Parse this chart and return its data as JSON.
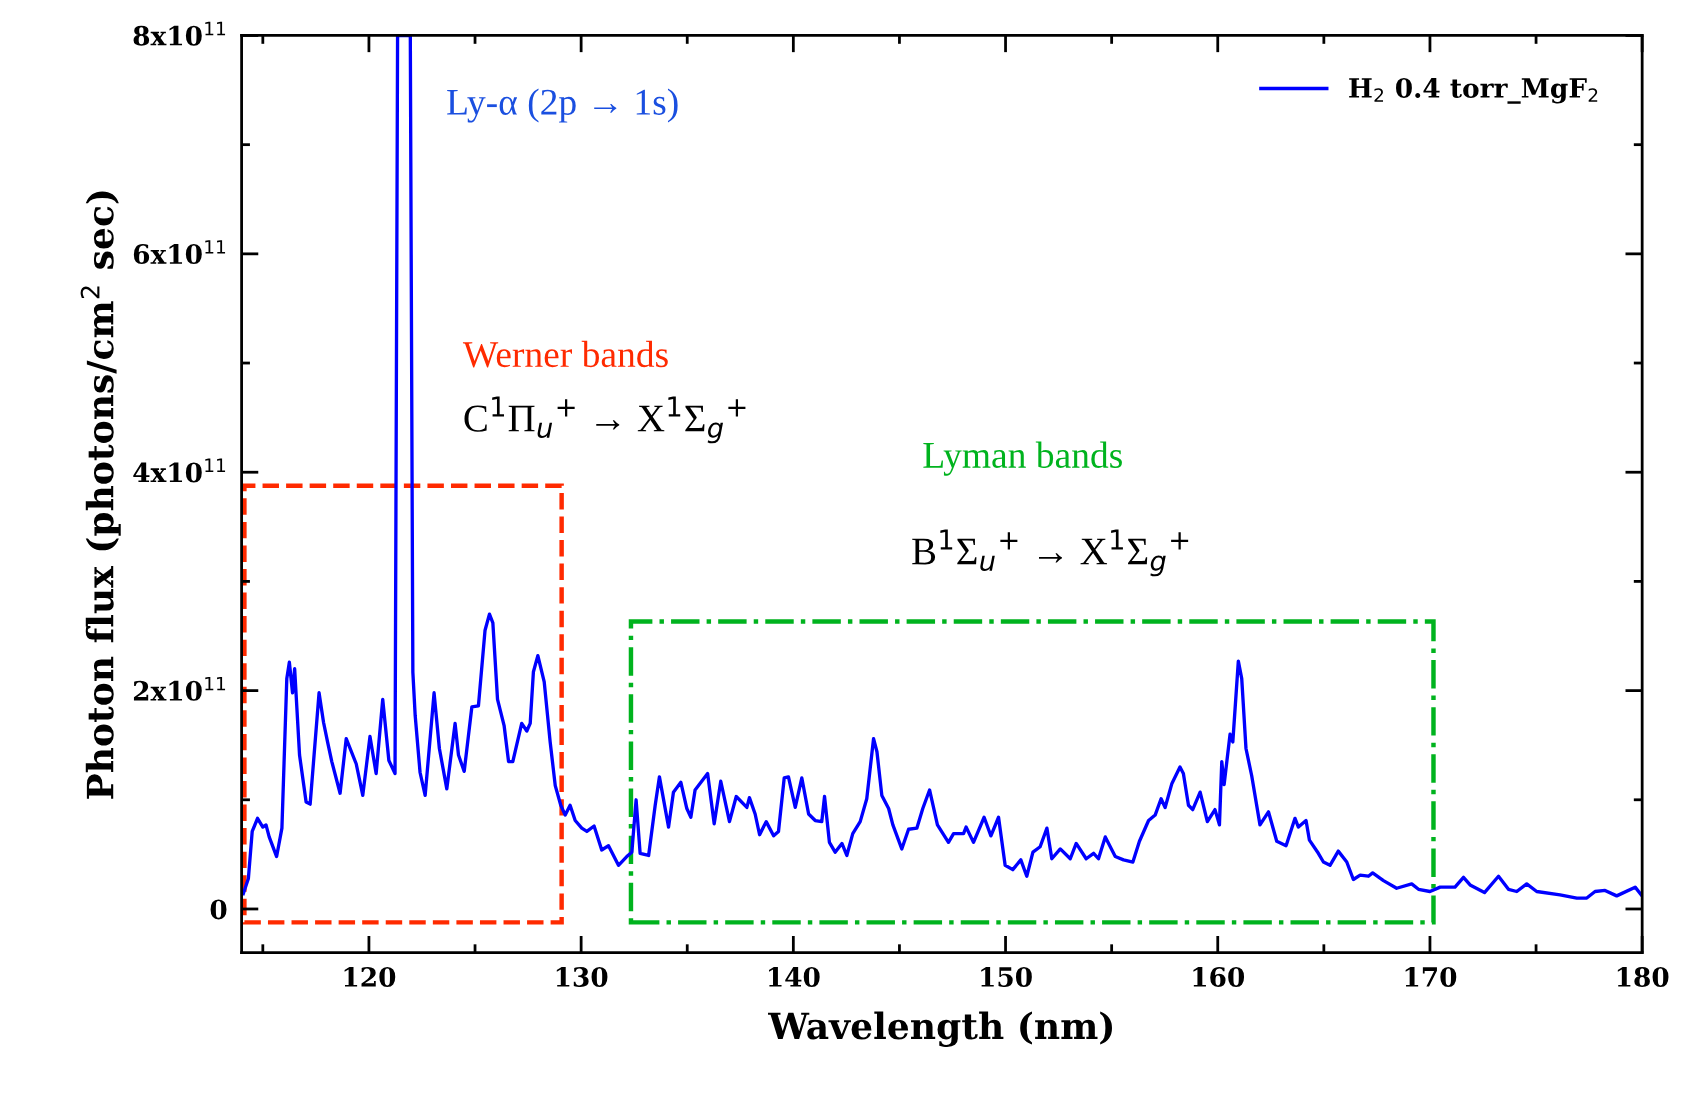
{
  "chart_data": {
    "type": "line",
    "xlabel": "Wavelength (nm)",
    "ylabel": "Photon flux (photons/cm$^{2}$ sec)",
    "xlim": [
      114,
      180
    ],
    "xticks": [
      120,
      130,
      140,
      150,
      160,
      170,
      180
    ],
    "ylim": [
      -40000000000.0,
      800000000000.0
    ],
    "yticks": [
      {
        "value": 0,
        "label": "0"
      },
      {
        "value": 200000000000.0,
        "label": "2x10$^{11}$"
      },
      {
        "value": 400000000000.0,
        "label": "4x10$^{11}$"
      },
      {
        "value": 600000000000.0,
        "label": "6x10$^{11}$"
      },
      {
        "value": 800000000000.0,
        "label": "8x10$^{11}$"
      }
    ],
    "grid": false,
    "legend": "top right",
    "marker": "none",
    "line_style": "solid",
    "series": [
      {
        "name": "H$_{2}$ 0.4 torr_MgF$_{2}$",
        "color": "#0000ff",
        "x": [
          114.08,
          114.32,
          114.5,
          114.75,
          115.0,
          115.15,
          115.3,
          115.65,
          115.9,
          116.13,
          116.25,
          116.4,
          116.5,
          116.73,
          117.04,
          117.23,
          117.65,
          117.86,
          118.05,
          118.25,
          118.64,
          118.93,
          119.4,
          119.71,
          120.05,
          120.34,
          120.65,
          120.94,
          121.23,
          121.35,
          121.95,
          122.07,
          122.18,
          122.41,
          122.65,
          123.07,
          123.32,
          123.67,
          124.06,
          124.22,
          124.49,
          124.85,
          125.16,
          125.47,
          125.68,
          125.84,
          126.06,
          126.37,
          126.58,
          126.78,
          127.2,
          127.44,
          127.6,
          127.75,
          127.96,
          128.26,
          128.54,
          128.78,
          129.04,
          129.25,
          129.48,
          129.72,
          130.03,
          130.27,
          130.61,
          130.97,
          131.29,
          131.76,
          132.15,
          132.39,
          132.59,
          132.78,
          133.18,
          133.49,
          133.69,
          134.12,
          134.35,
          134.7,
          134.98,
          135.17,
          135.37,
          135.96,
          136.27,
          136.58,
          136.99,
          137.31,
          137.81,
          137.93,
          138.2,
          138.41,
          138.72,
          139.07,
          139.3,
          139.57,
          139.77,
          140.09,
          140.4,
          140.72,
          141.03,
          141.34,
          141.47,
          141.7,
          141.97,
          142.29,
          142.52,
          142.8,
          143.15,
          143.46,
          143.78,
          143.94,
          144.17,
          144.49,
          144.69,
          145.11,
          145.43,
          145.82,
          146.1,
          146.42,
          146.79,
          147.31,
          147.55,
          148.02,
          148.14,
          148.49,
          148.99,
          149.31,
          149.67,
          149.98,
          150.34,
          150.72,
          151.0,
          151.29,
          151.63,
          151.95,
          152.18,
          152.58,
          153.05,
          153.33,
          153.8,
          154.15,
          154.38,
          154.7,
          155.17,
          155.56,
          156.0,
          156.31,
          156.74,
          157.05,
          157.33,
          157.52,
          157.84,
          158.22,
          158.38,
          158.62,
          158.82,
          159.17,
          159.51,
          159.87,
          160.08,
          160.19,
          160.3,
          160.58,
          160.71,
          160.97,
          161.13,
          161.33,
          161.6,
          161.99,
          162.39,
          162.78,
          163.22,
          163.64,
          163.8,
          164.16,
          164.32,
          164.74,
          164.98,
          165.29,
          165.68,
          166.08,
          166.39,
          166.71,
          167.1,
          167.3,
          167.81,
          168.43,
          169.14,
          169.46,
          170.0,
          170.48,
          171.18,
          171.58,
          171.89,
          172.57,
          173.23,
          173.7,
          174.09,
          174.56,
          175.03,
          176.13,
          176.92,
          177.39,
          177.78,
          178.25,
          178.8,
          179.67,
          179.95
        ],
        "values": [
          14000000000.0,
          28000000000.0,
          71000000000.0,
          83000000000.0,
          75000000000.0,
          77000000000.0,
          66000000000.0,
          48000000000.0,
          74000000000.0,
          211000000000.0,
          226000000000.0,
          198000000000.0,
          220000000000.0,
          141000000000.0,
          98000000000.0,
          96000000000.0,
          198000000000.0,
          171000000000.0,
          153000000000.0,
          135000000000.0,
          106000000000.0,
          156000000000.0,
          133000000000.0,
          104000000000.0,
          158000000000.0,
          124000000000.0,
          192000000000.0,
          136000000000.0,
          124000000000.0,
          800000000000.0,
          800000000000.0,
          217000000000.0,
          177000000000.0,
          125000000000.0,
          104000000000.0,
          198000000000.0,
          147000000000.0,
          110000000000.0,
          170000000000.0,
          141000000000.0,
          126000000000.0,
          185000000000.0,
          186000000000.0,
          255000000000.0,
          270000000000.0,
          262000000000.0,
          192000000000.0,
          168000000000.0,
          135000000000.0,
          135000000000.0,
          170000000000.0,
          163000000000.0,
          170000000000.0,
          217000000000.0,
          232000000000.0,
          208000000000.0,
          153000000000.0,
          113000000000.0,
          95000000000.0,
          86000000000.0,
          95000000000.0,
          81000000000.0,
          74000000000.0,
          71000000000.0,
          76000000000.0,
          54000000000.0,
          58000000000.0,
          40000000000.0,
          48000000000.0,
          52000000000.0,
          100000000000.0,
          51000000000.0,
          49000000000.0,
          95000000000.0,
          121000000000.0,
          75000000000.0,
          107000000000.0,
          116000000000.0,
          92000000000.0,
          84000000000.0,
          109000000000.0,
          124000000000.0,
          78000000000.0,
          117000000000.0,
          80000000000.0,
          103000000000.0,
          93000000000.0,
          102000000000.0,
          87000000000.0,
          68000000000.0,
          80000000000.0,
          67000000000.0,
          71000000000.0,
          120000000000.0,
          121000000000.0,
          93000000000.0,
          120000000000.0,
          87000000000.0,
          81000000000.0,
          80000000000.0,
          103000000000.0,
          61000000000.0,
          52000000000.0,
          60000000000.0,
          49000000000.0,
          69000000000.0,
          80000000000.0,
          101000000000.0,
          156000000000.0,
          144000000000.0,
          104000000000.0,
          92000000000.0,
          77000000000.0,
          55000000000.0,
          73000000000.0,
          74000000000.0,
          92000000000.0,
          109000000000.0,
          77000000000.0,
          61000000000.0,
          69000000000.0,
          69000000000.0,
          75000000000.0,
          61000000000.0,
          84000000000.0,
          67000000000.0,
          84000000000.0,
          40000000000.0,
          36000000000.0,
          45000000000.0,
          30000000000.0,
          52000000000.0,
          57000000000.0,
          74000000000.0,
          46000000000.0,
          55000000000.0,
          46000000000.0,
          60000000000.0,
          46000000000.0,
          51000000000.0,
          46000000000.0,
          66000000000.0,
          48000000000.0,
          45000000000.0,
          43000000000.0,
          62000000000.0,
          81000000000.0,
          86000000000.0,
          101000000000.0,
          93000000000.0,
          115000000000.0,
          130000000000.0,
          124000000000.0,
          95000000000.0,
          91000000000.0,
          107000000000.0,
          80000000000.0,
          91000000000.0,
          77000000000.0,
          135000000000.0,
          114000000000.0,
          160000000000.0,
          153000000000.0,
          227000000000.0,
          211000000000.0,
          147000000000.0,
          122000000000.0,
          77000000000.0,
          89000000000.0,
          62000000000.0,
          58000000000.0,
          83000000000.0,
          75000000000.0,
          81000000000.0,
          63000000000.0,
          51000000000.0,
          43000000000.0,
          40000000000.0,
          53000000000.0,
          43000000000.0,
          27000000000.0,
          31000000000.0,
          30000000000.0,
          33000000000.0,
          26000000000.0,
          19000000000.0,
          23000000000.0,
          18000000000.0,
          16000000000.0,
          20000000000.0,
          20000000000.0,
          29000000000.0,
          22000000000.0,
          15000000000.0,
          30000000000.0,
          18000000000.0,
          16000000000.0,
          23000000000.0,
          16000000000.0,
          13000000000.0,
          10000000000.0,
          10000000000.0,
          16000000000.0,
          17000000000.0,
          12000000000.0,
          20000000000.0,
          13000000000.0
        ]
      }
    ],
    "annotations": [
      "Ly-α (2p → 1s)",
      "Werner bands",
      "C$^{1}$Π$_{u}$$^{+}$ → X$^{1}$Σ$_{g}$$^{+}$",
      "Lyman bands",
      "B$^{1}$Σ$_{u}$$^{+}$ → X$^{1}$Σ$_{g}$$^{+}$"
    ]
  }
}
